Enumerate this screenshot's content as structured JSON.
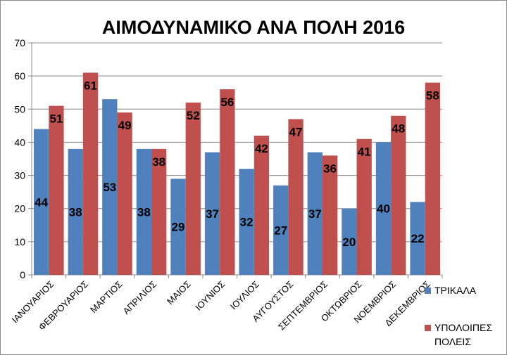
{
  "chart_data": {
    "type": "bar",
    "title": "ΑΙΜΟΔΥΝΑΜΙΚΟ ΑΝΑ ΠΟΛΗ 2016",
    "xlabel": "",
    "ylabel": "",
    "ylim": [
      0,
      70
    ],
    "yticks": [
      0,
      10,
      20,
      30,
      40,
      50,
      60,
      70
    ],
    "grid": true,
    "legend_position": "right",
    "categories": [
      "ΙΑΝΟΥΑΡΙΟΣ",
      "ΦΕΒΡΟΥΑΡΙΟΣ",
      "ΜΑΡΤΙΟΣ",
      "ΑΠΡΙΛΙΟΣ",
      "ΜΑΙΟΣ",
      "ΙΟΥΝΙΟΣ",
      "ΙΟΥΛΙΟΣ",
      "ΑΥΓΟΥΣΤΟΣ",
      "ΣΕΠΤΕΜΒΡΙΟΣ",
      "ΟΚΤΩΒΡΙΟΣ",
      "ΝΟΕΜΒΡΙΟΣ",
      "ΔΕΚΕΜΒΡΙΟΣ"
    ],
    "series": [
      {
        "name": "ΤΡΙΚΑΛΑ",
        "color": "#4f81bd",
        "values": [
          44,
          38,
          53,
          38,
          29,
          37,
          32,
          27,
          37,
          20,
          40,
          22
        ]
      },
      {
        "name": "ΥΠΟΛΟΙΠΕΣ ΠΟΛΕΙΣ",
        "name_lines": [
          "ΥΠΟΛΟΙΠΕΣ",
          "ΠΟΛΕΙΣ"
        ],
        "color": "#c0504d",
        "values": [
          51,
          61,
          49,
          38,
          52,
          56,
          42,
          47,
          36,
          41,
          48,
          58
        ]
      }
    ]
  }
}
